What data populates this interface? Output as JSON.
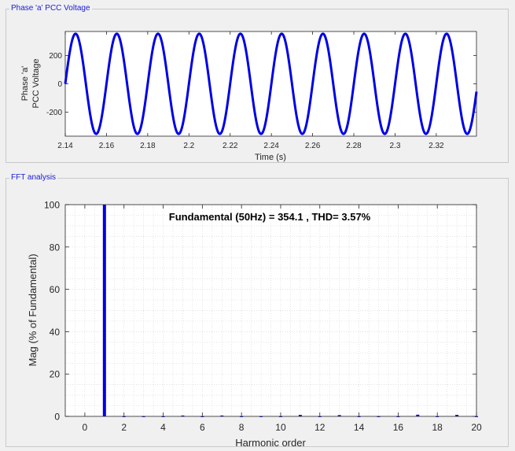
{
  "panels": {
    "voltage_title": "Phase 'a' PCC Voltage",
    "fft_title": "FFT analysis"
  },
  "chart_data": [
    {
      "type": "line",
      "xlabel": "Time (s)",
      "ylabel_lines": [
        "Phase 'a'",
        "PCC Voltage"
      ],
      "xlim": [
        2.14,
        2.3395
      ],
      "ylim": [
        -370,
        370
      ],
      "xticks": [
        2.14,
        2.16,
        2.18,
        2.2,
        2.22,
        2.24,
        2.26,
        2.28,
        2.3,
        2.32
      ],
      "xtick_labels": [
        "2.14",
        "2.16",
        "2.18",
        "2.2",
        "2.22",
        "2.24",
        "2.26",
        "2.28",
        "2.3",
        "2.32"
      ],
      "yticks": [
        -200,
        0,
        200
      ],
      "ytick_labels": [
        "-200",
        "0",
        "200"
      ],
      "series": [
        {
          "amplitude": 354.1,
          "frequency_hz": 50,
          "peak_time": 2.145,
          "color": "#0000e6"
        }
      ],
      "grid": false
    },
    {
      "type": "bar",
      "annotation": "Fundamental (50Hz) = 354.1 , THD= 3.57%",
      "xlabel": "Harmonic order",
      "ylabel": "Mag (% of Fundamental)",
      "xlim": [
        -1,
        20
      ],
      "ylim": [
        0,
        100
      ],
      "xticks": [
        0,
        2,
        4,
        6,
        8,
        10,
        12,
        14,
        16,
        18,
        20
      ],
      "xtick_labels": [
        "0",
        "2",
        "4",
        "6",
        "8",
        "10",
        "12",
        "14",
        "16",
        "18",
        "20"
      ],
      "yticks": [
        0,
        20,
        40,
        60,
        80,
        100
      ],
      "ytick_labels": [
        "0",
        "20",
        "40",
        "60",
        "80",
        "100"
      ],
      "x": [
        0,
        1,
        2,
        3,
        4,
        5,
        6,
        7,
        8,
        9,
        10,
        11,
        12,
        13,
        14,
        15,
        16,
        17,
        18,
        19,
        20
      ],
      "values": [
        0,
        100,
        0.1,
        0.1,
        0.1,
        0.4,
        0.1,
        0.4,
        0.1,
        0.1,
        0.1,
        0.7,
        0.1,
        0.6,
        0.1,
        0.1,
        0.1,
        0.8,
        0.1,
        0.7,
        0.1
      ],
      "grid": "dotted",
      "color": "#0000e6"
    }
  ]
}
